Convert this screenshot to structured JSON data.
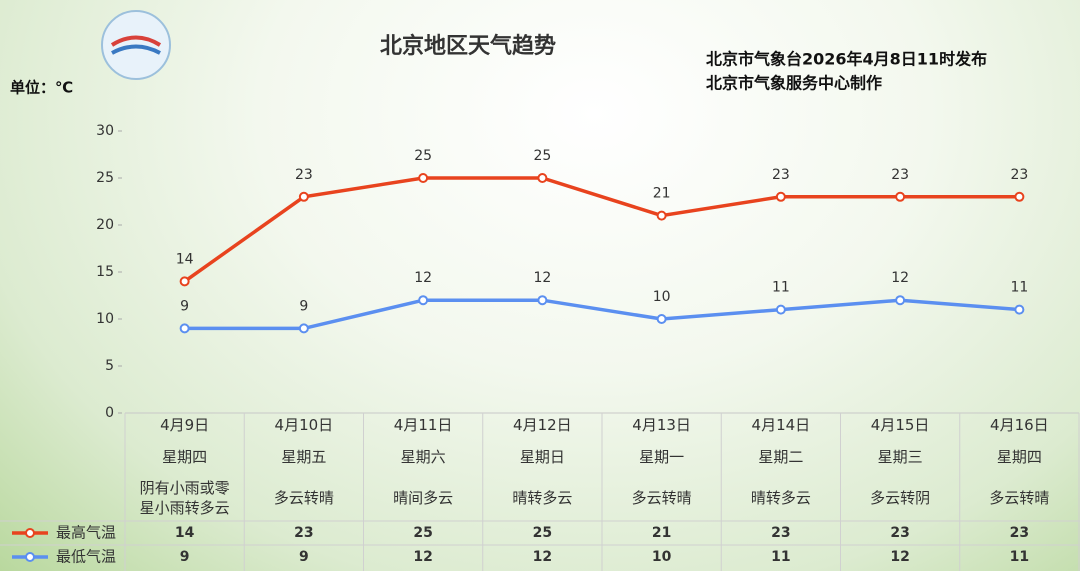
{
  "chart_data": {
    "type": "line",
    "title": "北京地区天气趋势",
    "issuer": [
      "北京市气象台2026年4月8日11时发布",
      "北京市气象服务中心制作"
    ],
    "unit_label": "单位：℃",
    "categories": [
      "4月9日",
      "4月10日",
      "4月11日",
      "4月12日",
      "4月13日",
      "4月14日",
      "4月15日",
      "4月16日"
    ],
    "weekdays": [
      "星期四",
      "星期五",
      "星期六",
      "星期日",
      "星期一",
      "星期二",
      "星期三",
      "星期四"
    ],
    "weather": [
      "阴有小雨或零星小雨转多云",
      "多云转晴",
      "晴间多云",
      "晴转多云",
      "多云转晴",
      "晴转多云",
      "多云转阴",
      "多云转晴"
    ],
    "series": [
      {
        "name": "最高气温",
        "color": "#e8431e",
        "values": [
          14,
          23,
          25,
          25,
          21,
          23,
          23,
          23
        ]
      },
      {
        "name": "最低气温",
        "color": "#5b8ff0",
        "values": [
          9,
          9,
          12,
          12,
          10,
          11,
          12,
          11
        ]
      }
    ],
    "ylim": [
      0,
      30
    ],
    "yticks": [
      0,
      5,
      10,
      15,
      20,
      25,
      30
    ],
    "grid": false
  }
}
